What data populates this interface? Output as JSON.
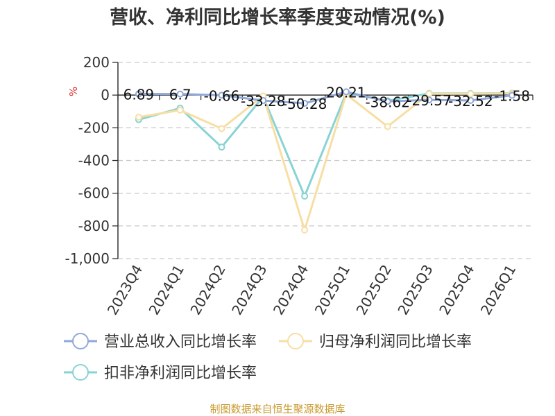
{
  "chart_data": {
    "type": "line",
    "title": "营收、净利同比增长率季度变动情况(%)",
    "unit_label": "%",
    "categories": [
      "2023Q4",
      "2024Q1",
      "2024Q2",
      "2024Q3",
      "2024Q4",
      "2025Q1",
      "2025Q2",
      "2025Q3",
      "2025Q4",
      "2026Q1"
    ],
    "ylim": [
      -1000,
      200
    ],
    "yticks": [
      200,
      0,
      -200,
      -400,
      -600,
      -800,
      -1000
    ],
    "ytick_labels": [
      "200",
      "0",
      "-200",
      "-400",
      "-600",
      "-800",
      "-1,000"
    ],
    "grid": true,
    "legend_position": "bottom",
    "series": [
      {
        "name": "营业总收入同比增长率",
        "color": "#8fa8d8",
        "values": [
          6.89,
          6.7,
          -0.66,
          -33.28,
          -50.28,
          20.21,
          -38.62,
          -29.57,
          -32.52,
          -1.58
        ],
        "labels": [
          "6.89",
          "6.7",
          "-0.66",
          "-33.28",
          "-50.28",
          "20.21",
          "-38.62",
          "-29.57",
          "-32.52",
          "-1.58"
        ]
      },
      {
        "name": "归母净利润同比增长率",
        "color": "#f7dea3",
        "values": [
          -135,
          -92,
          -205,
          -5,
          -825,
          5,
          -192,
          8,
          8,
          10
        ]
      },
      {
        "name": "扣非净利润同比增长率",
        "color": "#88d3d3",
        "values": [
          -150,
          -80,
          -318,
          -10,
          -618,
          12,
          -35,
          10,
          10,
          12
        ]
      }
    ]
  },
  "source": "制图数据来自恒生聚源数据库"
}
